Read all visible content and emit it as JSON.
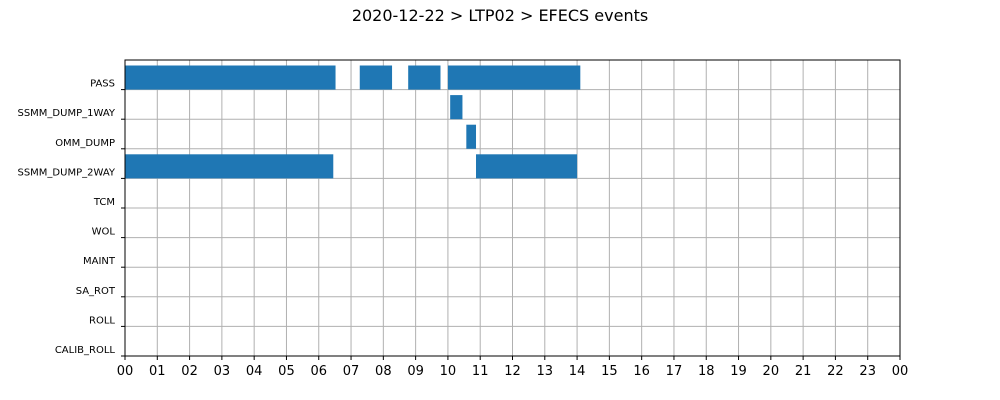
{
  "chart_data": {
    "type": "bar",
    "orientation": "horizontal-timeline",
    "title": "2020-12-22 > LTP02 > EFECS events",
    "xlabel": "",
    "ylabel": "",
    "xlim": [
      0,
      24
    ],
    "grid": true,
    "bar_color": "#1f77b4",
    "categories": [
      "PASS",
      "SSMM_DUMP_1WAY",
      "OMM_DUMP",
      "SSMM_DUMP_2WAY",
      "TCM",
      "WOL",
      "MAINT",
      "SA_ROT",
      "ROLL",
      "CALIB_ROLL"
    ],
    "x_tick_labels": [
      "00",
      "01",
      "02",
      "03",
      "04",
      "05",
      "06",
      "07",
      "08",
      "09",
      "10",
      "11",
      "12",
      "13",
      "14",
      "15",
      "16",
      "17",
      "18",
      "19",
      "20",
      "21",
      "22",
      "23",
      "00"
    ],
    "events": [
      {
        "category": "PASS",
        "start": 0.0,
        "end": 6.52
      },
      {
        "category": "PASS",
        "start": 7.27,
        "end": 8.27
      },
      {
        "category": "PASS",
        "start": 8.77,
        "end": 9.77
      },
      {
        "category": "PASS",
        "start": 10.0,
        "end": 14.1
      },
      {
        "category": "SSMM_DUMP_1WAY",
        "start": 10.07,
        "end": 10.45
      },
      {
        "category": "OMM_DUMP",
        "start": 10.57,
        "end": 10.87
      },
      {
        "category": "SSMM_DUMP_2WAY",
        "start": 0.0,
        "end": 6.45
      },
      {
        "category": "SSMM_DUMP_2WAY",
        "start": 10.87,
        "end": 14.0
      }
    ]
  }
}
